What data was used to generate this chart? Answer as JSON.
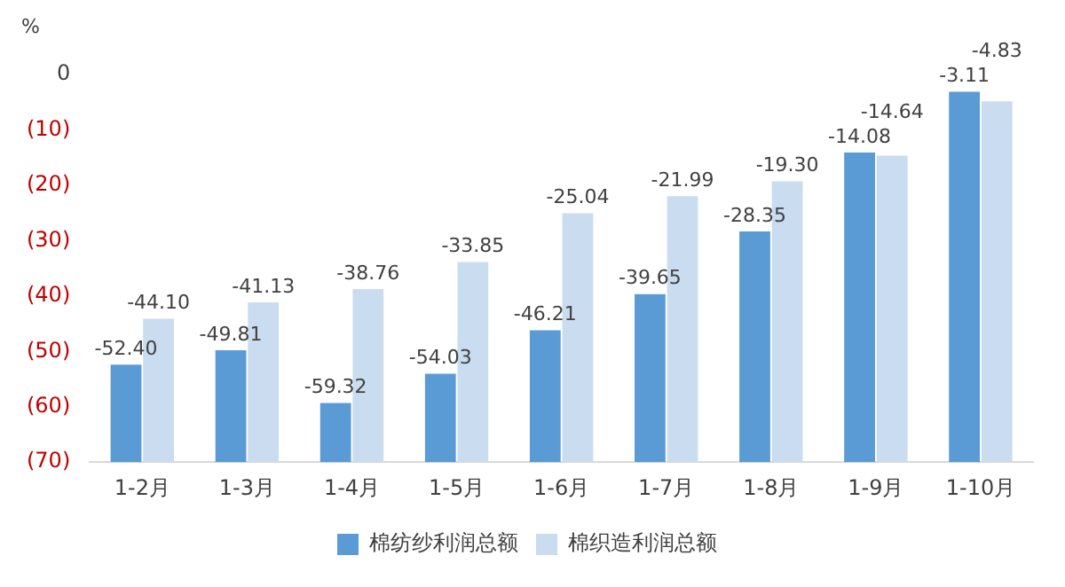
{
  "chart_data": {
    "type": "bar",
    "ylabel": "%",
    "categories": [
      "1-2月",
      "1-3月",
      "1-4月",
      "1-5月",
      "1-6月",
      "1-7月",
      "1-8月",
      "1-9月",
      "1-10月"
    ],
    "series": [
      {
        "name": "棉纺纱利润总额",
        "color": "#5b9bd5",
        "base": [
          -70,
          -70,
          -70,
          -70,
          -70,
          -70,
          -70,
          -70,
          -70
        ],
        "values": [
          17.6,
          20.19,
          10.68,
          15.97,
          23.79,
          30.35,
          41.65,
          55.92,
          66.89
        ],
        "value_labels": [
          "-52.40",
          "-49.81",
          "-59.32",
          "-54.03",
          "-46.21",
          "-39.65",
          "-28.35",
          "-14.08",
          "-3.11"
        ]
      },
      {
        "name": "棉织造利润总额",
        "color": "#c9dcf0",
        "base": [
          -70,
          -70,
          -70,
          -70,
          -70,
          -70,
          -70,
          -70,
          -70
        ],
        "values": [
          25.9,
          28.87,
          31.24,
          36.15,
          44.96,
          48.01,
          50.7,
          55.36,
          65.17
        ],
        "value_labels": [
          "-44.10",
          "-41.13",
          "-38.76",
          "-33.85",
          "-25.04",
          "-21.99",
          "-19.30",
          "-14.64",
          "-4.83"
        ]
      }
    ],
    "ylim": [
      -70,
      0
    ],
    "yticks": [
      0,
      {
        "value": -10,
        "label": "(10)"
      },
      {
        "value": -20,
        "label": "(20)"
      },
      {
        "value": -30,
        "label": "(30)"
      },
      {
        "value": -40,
        "label": "(40)"
      },
      {
        "value": -50,
        "label": "(50)"
      },
      {
        "value": -60,
        "label": "(60)"
      },
      {
        "value": -70,
        "label": "(70)"
      }
    ],
    "grid": false,
    "legend": "bottom"
  }
}
